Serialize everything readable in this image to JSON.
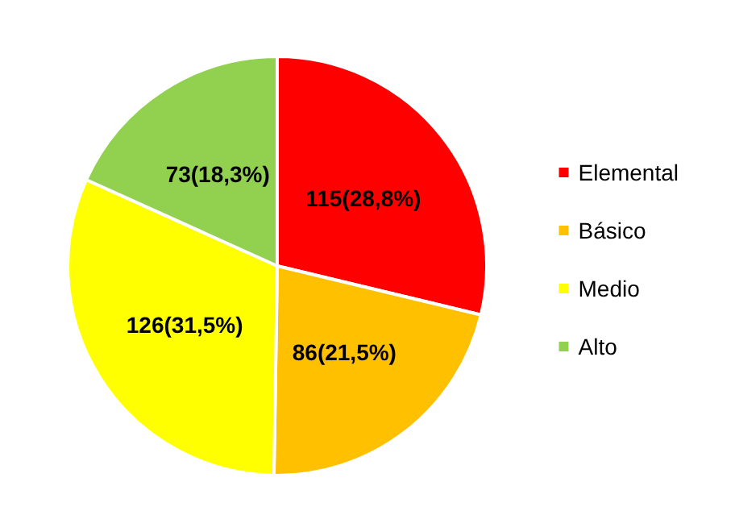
{
  "chart_data": {
    "type": "pie",
    "categories": [
      "Elemental",
      "Básico",
      "Medio",
      "Alto"
    ],
    "values": [
      115,
      86,
      126,
      73
    ],
    "colors": [
      "#ff0000",
      "#ffc000",
      "#ffff00",
      "#92d050"
    ],
    "value_labels": [
      "115(28,8%)",
      "86(21,5%)",
      "126(31,5%)",
      "73(18,3%)"
    ],
    "legend": "right"
  }
}
